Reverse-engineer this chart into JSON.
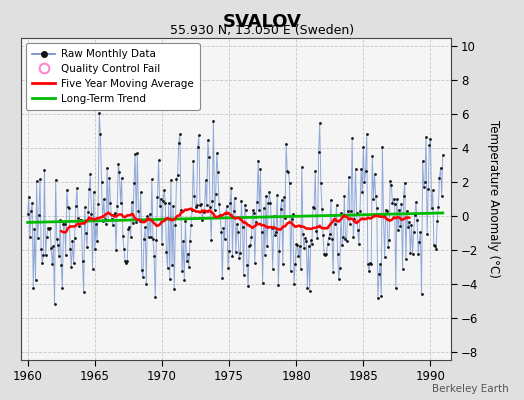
{
  "title": "SVALOV",
  "subtitle": "55.930 N, 13.050 E (Sweden)",
  "ylabel": "Temperature Anomaly (°C)",
  "watermark": "Berkeley Earth",
  "xlim": [
    1959.5,
    1991.5
  ],
  "ylim": [
    -8.5,
    10.5
  ],
  "yticks": [
    -8,
    -6,
    -4,
    -2,
    0,
    2,
    4,
    6,
    8,
    10
  ],
  "xticks": [
    1960,
    1965,
    1970,
    1975,
    1980,
    1985,
    1990
  ],
  "bg_color": "#e0e0e0",
  "plot_bg_color": "#f5f5f5",
  "raw_line_color": "#6688cc",
  "raw_dot_color": "#111111",
  "moving_avg_color": "#ff0000",
  "trend_color": "#00bb00",
  "trend_slope": 0.018,
  "trend_intercept": -0.38,
  "noise_std": 2.1,
  "seed": 77
}
